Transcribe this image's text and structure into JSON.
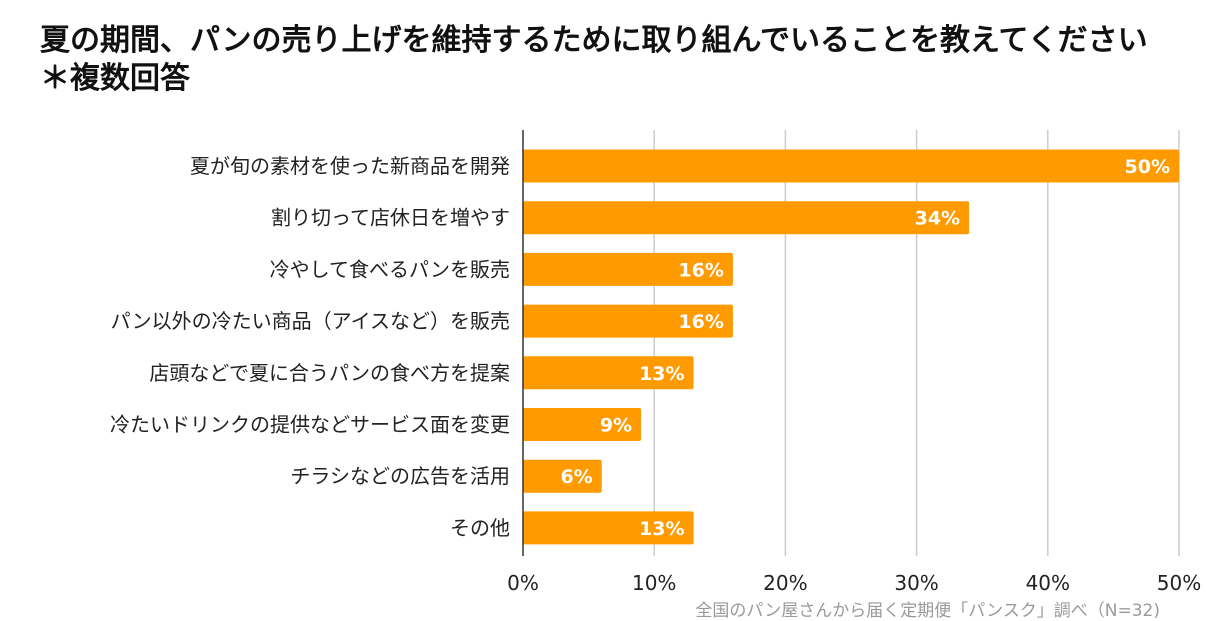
{
  "chart_data": {
    "type": "bar",
    "orientation": "horizontal",
    "title": "夏の期間、パンの売り上げを維持するために取り組んでいることを教えてください　＊複数回答",
    "categories": [
      "夏が旬の素材を使った新商品を開発",
      "割り切って店休日を増やす",
      "冷やして食べるパンを販売",
      "パン以外の冷たい商品（アイスなど）を販売",
      "店頭などで夏に合うパンの食べ方を提案",
      "冷たいドリンクの提供などサービス面を変更",
      "チラシなどの広告を活用",
      "その他"
    ],
    "values": [
      50,
      34,
      16,
      16,
      13,
      9,
      6,
      13
    ],
    "data_labels": [
      "50%",
      "34%",
      "16%",
      "16%",
      "13%",
      "9%",
      "6%",
      "13%"
    ],
    "xlim": [
      0,
      50
    ],
    "x_ticks": [
      "0%",
      "10%",
      "20%",
      "30%",
      "40%",
      "50%"
    ],
    "xlabel": "",
    "ylabel": "",
    "grid": "vertical",
    "legend": "none",
    "bar_color": "#FF9B00",
    "grid_color": "#CCCCCC",
    "source": "全国のパン屋さんから届く定期便「パンスク」調べ（N=32)"
  }
}
